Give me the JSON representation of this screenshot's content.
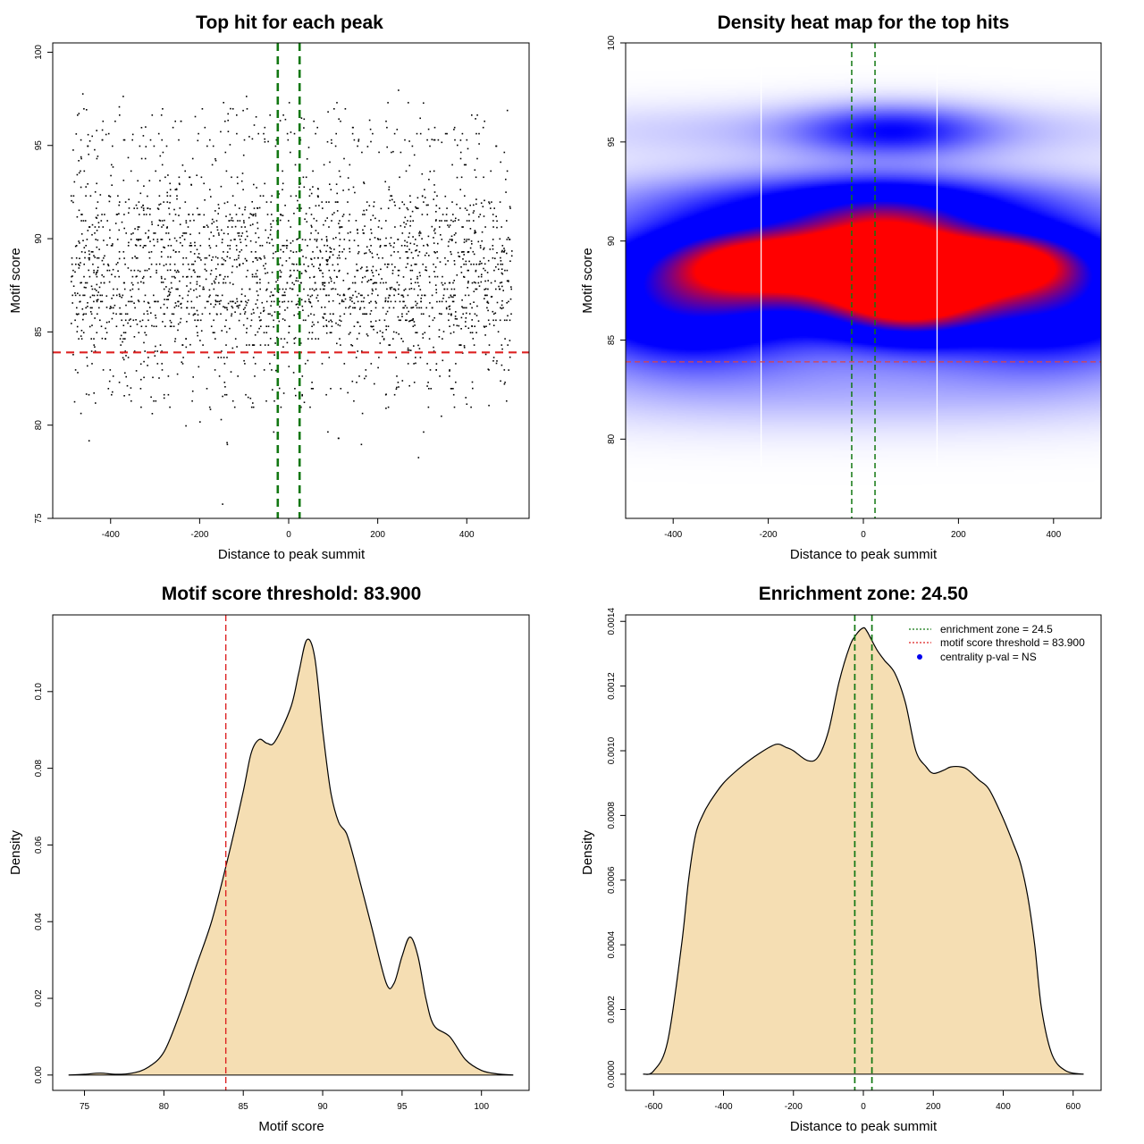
{
  "chart_data": [
    {
      "id": "scatter",
      "type": "scatter",
      "title": "Top hit for each peak",
      "xlabel": "Distance to peak summit",
      "ylabel": "Motif score",
      "xlim": [
        -530,
        540
      ],
      "ylim": [
        75,
        100.5
      ],
      "xticks": [
        -400,
        -200,
        0,
        200,
        400
      ],
      "yticks": [
        75,
        80,
        85,
        90,
        95,
        100
      ],
      "point_color": "#000000",
      "threshold": 83.9,
      "threshold_color": "#dd2222",
      "enrichment_zone": [
        -24.5,
        24.5
      ],
      "zone_color": "#117711",
      "sample": {
        "n": 2600,
        "x_range": [
          -490,
          500
        ],
        "score_mixture": [
          {
            "mean": 86.3,
            "sd": 1.3,
            "weight": 0.34
          },
          {
            "mean": 89.4,
            "sd": 1.5,
            "weight": 0.4
          },
          {
            "mean": 92.0,
            "sd": 1.4,
            "weight": 0.12
          },
          {
            "mean": 95.6,
            "sd": 0.9,
            "weight": 0.07
          },
          {
            "mean": 82.4,
            "sd": 1.3,
            "weight": 0.07
          }
        ],
        "outliers": [
          [
            -150,
            75.8
          ],
          [
            -140,
            79.1
          ],
          [
            -450,
            79.2
          ],
          [
            290,
            78.3
          ]
        ]
      }
    },
    {
      "id": "heatmap",
      "type": "heatmap",
      "title": "Density heat map for the top hits",
      "xlabel": "Distance to peak summit",
      "ylabel": "Motif score",
      "xlim": [
        -500,
        500
      ],
      "ylim": [
        76,
        100
      ],
      "xticks": [
        -400,
        -200,
        0,
        200,
        400
      ],
      "yticks": [
        80,
        85,
        90,
        95,
        100
      ],
      "threshold": 83.9,
      "threshold_color": "#dd4444",
      "enrichment_zone": [
        -24.5,
        24.5
      ],
      "zone_color": "#117711",
      "colormap": [
        "#ffffff",
        "#0000ff",
        "#ff0000"
      ],
      "white_lines_x": [
        -215,
        155
      ],
      "blobs": [
        {
          "x": -220,
          "y": 89.0,
          "wx": 140,
          "wy": 1.2,
          "w": 0.95
        },
        {
          "x": 50,
          "y": 89.4,
          "wx": 130,
          "wy": 1.7,
          "w": 1.1
        },
        {
          "x": 90,
          "y": 87.2,
          "wx": 110,
          "wy": 1.4,
          "w": 0.95
        },
        {
          "x": 310,
          "y": 89.0,
          "wx": 110,
          "wy": 1.1,
          "w": 0.9
        },
        {
          "x": 0,
          "y": 88.2,
          "wx": 520,
          "wy": 2.4,
          "w": 0.65
        },
        {
          "x": -380,
          "y": 86.5,
          "wx": 170,
          "wy": 2.0,
          "w": 0.55
        },
        {
          "x": 400,
          "y": 86.5,
          "wx": 170,
          "wy": 2.0,
          "w": 0.5
        },
        {
          "x": 0,
          "y": 92.0,
          "wx": 320,
          "wy": 1.1,
          "w": 0.45
        },
        {
          "x": 60,
          "y": 95.6,
          "wx": 140,
          "wy": 0.9,
          "w": 0.4
        },
        {
          "x": 0,
          "y": 95.6,
          "wx": 520,
          "wy": 1.0,
          "w": 0.14
        },
        {
          "x": 0,
          "y": 82.5,
          "wx": 520,
          "wy": 1.5,
          "w": 0.14
        }
      ]
    },
    {
      "id": "score-density",
      "type": "area",
      "title": "Motif score threshold: 83.900",
      "xlabel": "Motif score",
      "ylabel": "Density",
      "xlim": [
        73,
        103
      ],
      "ylim": [
        -0.004,
        0.12
      ],
      "xticks": [
        75,
        80,
        85,
        90,
        95,
        100
      ],
      "yticks": [
        0.0,
        0.02,
        0.04,
        0.06,
        0.08,
        0.1
      ],
      "ytick_labels": [
        "0.00",
        "0.02",
        "0.04",
        "0.06",
        "0.08",
        "0.10"
      ],
      "fill": "#f5deb3",
      "threshold": 83.9,
      "threshold_color": "#dd2222",
      "x": [
        74,
        75,
        76,
        77,
        78,
        79,
        80,
        81,
        82,
        83,
        84,
        85,
        85.5,
        86,
        86.5,
        87,
        88,
        88.5,
        89,
        89.5,
        90,
        90.5,
        91,
        91.5,
        92,
        93,
        94,
        94.5,
        95,
        95.5,
        96,
        96.5,
        97,
        98,
        99,
        100,
        101,
        102
      ],
      "y": [
        0.0,
        0.0002,
        0.0005,
        0.0002,
        0.0005,
        0.002,
        0.006,
        0.016,
        0.028,
        0.04,
        0.056,
        0.074,
        0.084,
        0.0875,
        0.0865,
        0.087,
        0.096,
        0.105,
        0.1135,
        0.109,
        0.09,
        0.074,
        0.066,
        0.063,
        0.056,
        0.04,
        0.024,
        0.024,
        0.031,
        0.036,
        0.031,
        0.02,
        0.013,
        0.01,
        0.004,
        0.0012,
        0.0003,
        0.0
      ]
    },
    {
      "id": "distance-density",
      "type": "area",
      "title": "Enrichment zone: 24.50",
      "xlabel": "Distance to peak summit",
      "ylabel": "Density",
      "xlim": [
        -680,
        680
      ],
      "ylim": [
        -5e-05,
        0.00142
      ],
      "xticks": [
        -600,
        -400,
        -200,
        0,
        200,
        400,
        600
      ],
      "yticks": [
        0,
        0.0002,
        0.0004,
        0.0006,
        0.0008,
        0.001,
        0.0012,
        0.0014
      ],
      "ytick_labels": [
        "0.0000",
        "0.0002",
        "0.0004",
        "0.0006",
        "0.0008",
        "0.0010",
        "0.0012",
        "0.0014"
      ],
      "fill": "#f5deb3",
      "enrichment_zone": [
        -24.5,
        24.5
      ],
      "zone_color": "#117711",
      "x": [
        -630,
        -600,
        -560,
        -520,
        -500,
        -480,
        -460,
        -440,
        -400,
        -350,
        -300,
        -250,
        -220,
        -200,
        -160,
        -130,
        -100,
        -70,
        -40,
        -20,
        0,
        10,
        20,
        40,
        60,
        90,
        120,
        150,
        180,
        200,
        230,
        250,
        280,
        300,
        330,
        360,
        400,
        430,
        450,
        470,
        490,
        510,
        540,
        580,
        630
      ],
      "y": [
        0.0,
        1e-05,
        0.0001,
        0.0004,
        0.0006,
        0.00074,
        0.0008,
        0.00084,
        0.0009,
        0.00095,
        0.00099,
        0.00102,
        0.00101,
        0.001,
        0.00097,
        0.00098,
        0.00106,
        0.00121,
        0.00132,
        0.00136,
        0.00138,
        0.00137,
        0.00135,
        0.00131,
        0.00128,
        0.00124,
        0.00115,
        0.001,
        0.00095,
        0.00093,
        0.00094,
        0.00095,
        0.00095,
        0.00094,
        0.00091,
        0.00088,
        0.00079,
        0.00071,
        0.00065,
        0.00055,
        0.0004,
        0.0002,
        6e-05,
        1e-05,
        0.0
      ]
    }
  ],
  "legend": [
    {
      "label": "enrichment zone = 24.5",
      "color": "#117711",
      "symbol": "dotted-line"
    },
    {
      "label": "motif score threshold = 83.900",
      "color": "#dd2222",
      "symbol": "dotted-line"
    },
    {
      "label": "centrality p-val = NS",
      "color": "#0000ee",
      "symbol": "dot"
    }
  ]
}
